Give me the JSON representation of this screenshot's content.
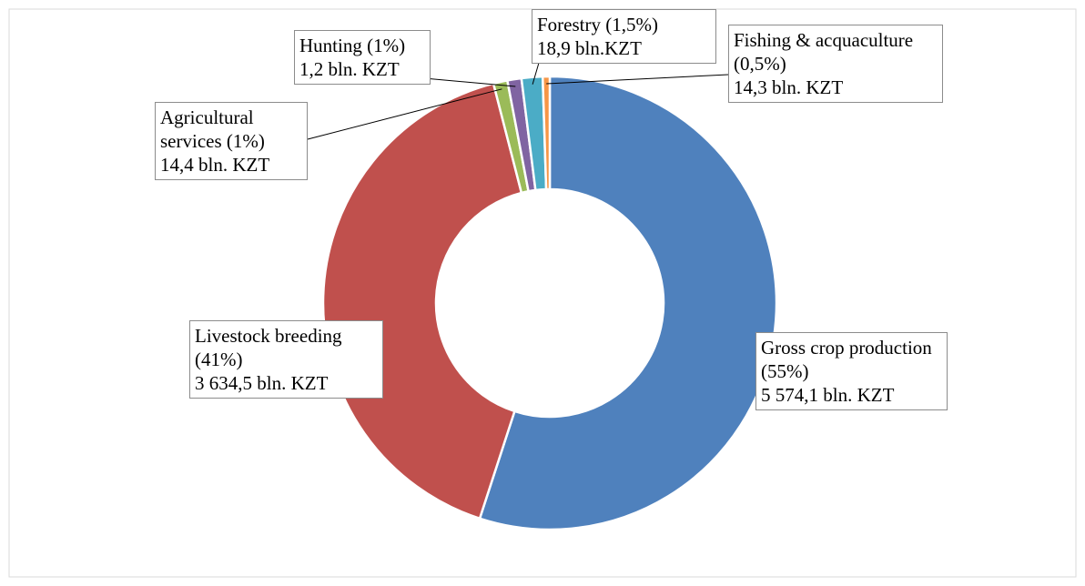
{
  "chart_data": {
    "type": "donut",
    "categories": [
      "Gross crop production",
      "Livestock breeding",
      "Agricultural services",
      "Hunting",
      "Forestry",
      "Fishing & acquaculture"
    ],
    "values": [
      55,
      41,
      1,
      1,
      1.5,
      0.5
    ],
    "value_labels": [
      "(55%)",
      "(41%)",
      "(1%)",
      "(1%)",
      "(1,5%)",
      "(0,5%)"
    ],
    "amounts": [
      "5 574,1 bln. KZT",
      "3 634,5 bln. KZT",
      "14,4 bln. KZT",
      "1,2 bln. KZT",
      "18,9 bln.KZT",
      "14,3 bln. KZT"
    ],
    "colors": [
      "#4f81bd",
      "#c0504d",
      "#9bbb59",
      "#8064a2",
      "#4bacc6",
      "#f79646"
    ]
  }
}
